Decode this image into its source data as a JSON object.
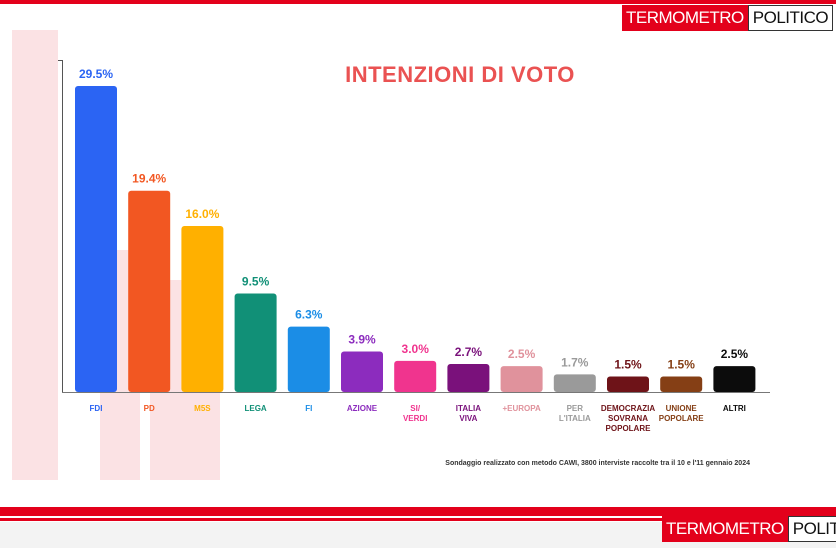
{
  "brand": {
    "part1": "TERMOMETRO",
    "part2": "POLITICO"
  },
  "footnote": "Sondaggio realizzato con metodo CAWI, 3800 interviste raccolte tra il 10 e l'11 gennaio 2024",
  "chart_data": {
    "type": "bar",
    "title": "INTENZIONI DI VOTO",
    "ylim": [
      0,
      32
    ],
    "grid": false,
    "categories": [
      "FDI",
      "PD",
      "M5S",
      "LEGA",
      "FI",
      "AZIONE",
      "SI/\nVERDI",
      "ITALIA\nVIVA",
      "+EUROPA",
      "PER\nL'ITALIA",
      "DEMOCRAZIA\nSOVRANA\nPOPOLARE",
      "UNIONE\nPOPOLARE",
      "ALTRI"
    ],
    "values": [
      29.5,
      19.4,
      16.0,
      9.5,
      6.3,
      3.9,
      3.0,
      2.7,
      2.5,
      1.7,
      1.5,
      1.5,
      2.5
    ],
    "labels": [
      "29.5%",
      "19.4%",
      "16.0%",
      "9.5%",
      "6.3%",
      "3.9%",
      "3.0%",
      "2.7%",
      "2.5%",
      "1.7%",
      "1.5%",
      "1.5%",
      "2.5%"
    ],
    "colors": [
      "#2b64f3",
      "#f25722",
      "#ffb000",
      "#119077",
      "#1b8de6",
      "#8c2cbe",
      "#f0348e",
      "#7a117b",
      "#e0929c",
      "#9a9a9a",
      "#6e1318",
      "#853f15",
      "#0c0c0c"
    ]
  }
}
